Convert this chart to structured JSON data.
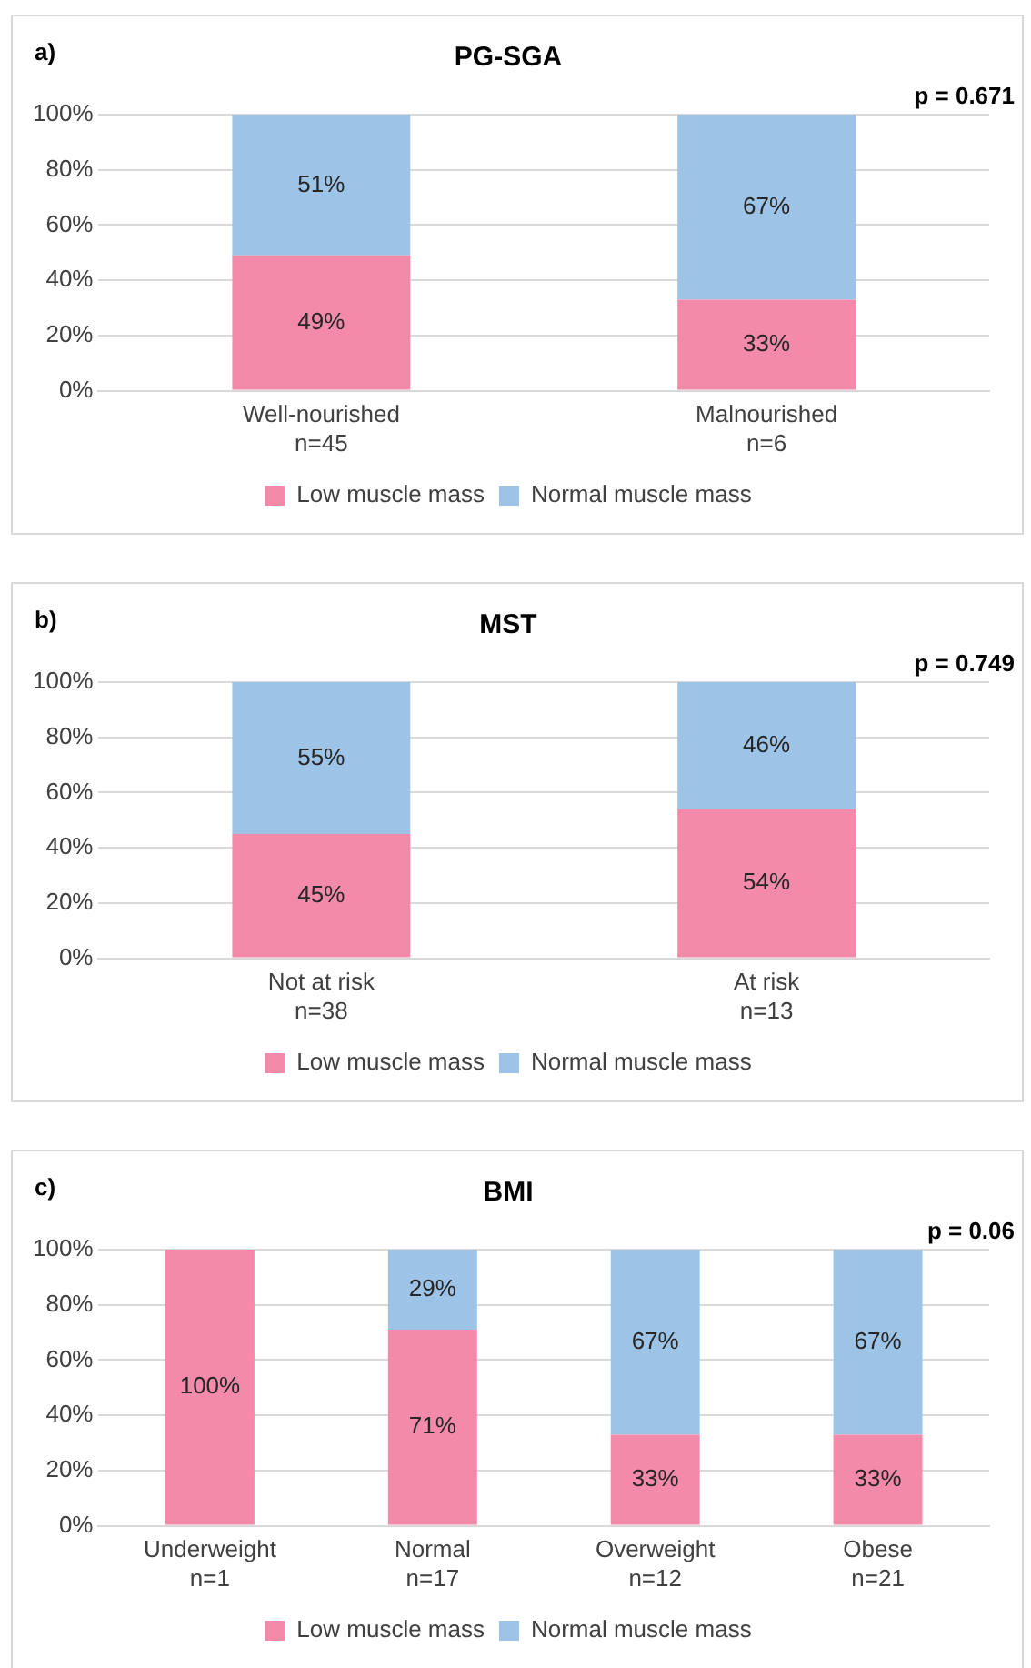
{
  "chart_data": [
    {
      "type": "bar",
      "title": "PG-SGA",
      "stacked": true,
      "categories": [
        "Well-nourished\nn=45",
        "Malnourished\nn=6"
      ],
      "series": [
        {
          "name": "Low muscle mass",
          "color": "#f48aaa",
          "values": [
            49,
            33
          ],
          "value_labels": [
            "49%",
            "33%"
          ]
        },
        {
          "name": "Normal muscle mass",
          "color": "#9dc3e6",
          "values": [
            51,
            67
          ],
          "value_labels": [
            "51%",
            "67%"
          ]
        }
      ],
      "ylim": [
        0,
        100
      ],
      "yticks": [
        {
          "value": 0,
          "label": "0%"
        },
        {
          "value": 20,
          "label": "20%"
        },
        {
          "value": 40,
          "label": "40%"
        },
        {
          "value": 60,
          "label": "60%"
        },
        {
          "value": 80,
          "label": "80%"
        },
        {
          "value": 100,
          "label": "100%"
        }
      ],
      "grid": "y",
      "legend": "bottom",
      "annotations": [
        "a)",
        "p = 0.671"
      ]
    },
    {
      "type": "bar",
      "title": "MST",
      "stacked": true,
      "categories": [
        "Not at risk\nn=38",
        "At risk\nn=13"
      ],
      "series": [
        {
          "name": "Low muscle mass",
          "color": "#f48aaa",
          "values": [
            45,
            54
          ],
          "value_labels": [
            "45%",
            "54%"
          ]
        },
        {
          "name": "Normal muscle mass",
          "color": "#9dc3e6",
          "values": [
            55,
            46
          ],
          "value_labels": [
            "55%",
            "46%"
          ]
        }
      ],
      "ylim": [
        0,
        100
      ],
      "yticks": [
        {
          "value": 0,
          "label": "0%"
        },
        {
          "value": 20,
          "label": "20%"
        },
        {
          "value": 40,
          "label": "40%"
        },
        {
          "value": 60,
          "label": "60%"
        },
        {
          "value": 80,
          "label": "80%"
        },
        {
          "value": 100,
          "label": "100%"
        }
      ],
      "grid": "y",
      "legend": "bottom",
      "annotations": [
        "b)",
        "p = 0.749"
      ]
    },
    {
      "type": "bar",
      "title": "BMI",
      "stacked": true,
      "categories": [
        "Underweight\nn=1",
        "Normal\nn=17",
        "Overweight\nn=12",
        "Obese\nn=21"
      ],
      "series": [
        {
          "name": "Low muscle mass",
          "color": "#f48aaa",
          "values": [
            100,
            71,
            33,
            33
          ],
          "value_labels": [
            "100%",
            "71%",
            "33%",
            "33%"
          ]
        },
        {
          "name": "Normal muscle mass",
          "color": "#9dc3e6",
          "values": [
            0,
            29,
            67,
            67
          ],
          "value_labels": [
            null,
            "29%",
            "67%",
            "67%"
          ]
        }
      ],
      "ylim": [
        0,
        100
      ],
      "yticks": [
        {
          "value": 0,
          "label": "0%"
        },
        {
          "value": 20,
          "label": "20%"
        },
        {
          "value": 40,
          "label": "40%"
        },
        {
          "value": 60,
          "label": "60%"
        },
        {
          "value": 80,
          "label": "80%"
        },
        {
          "value": 100,
          "label": "100%"
        }
      ],
      "grid": "y",
      "legend": "bottom",
      "annotations": [
        "c)",
        "p = 0.06"
      ]
    }
  ]
}
